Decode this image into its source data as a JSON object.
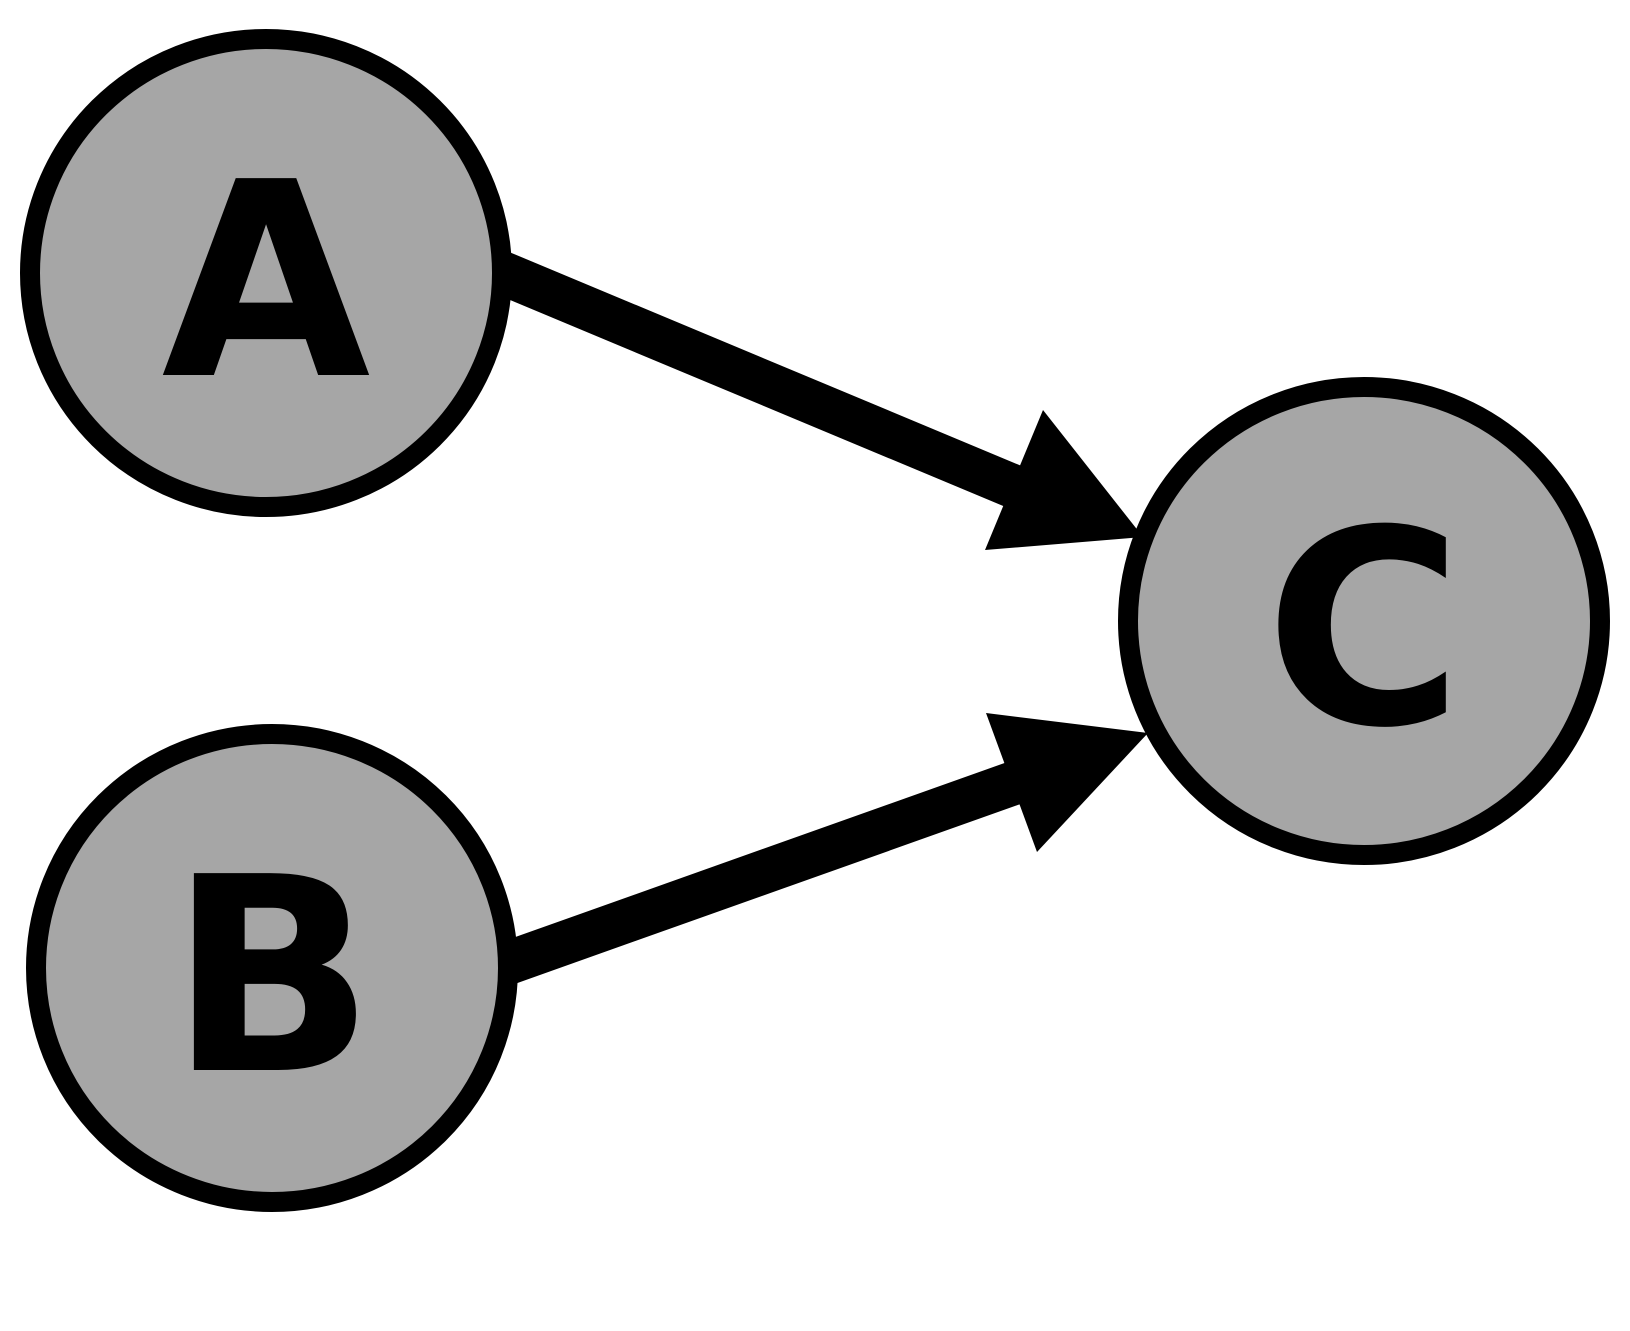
{
  "colors": {
    "node_fill": "#a6a6a6",
    "stroke": "#000000",
    "background": "#ffffff"
  },
  "nodes": [
    {
      "id": "A",
      "label": "A"
    },
    {
      "id": "B",
      "label": "B"
    },
    {
      "id": "C",
      "label": "C"
    }
  ],
  "edges": [
    {
      "from": "A",
      "to": "C"
    },
    {
      "from": "B",
      "to": "C"
    }
  ]
}
